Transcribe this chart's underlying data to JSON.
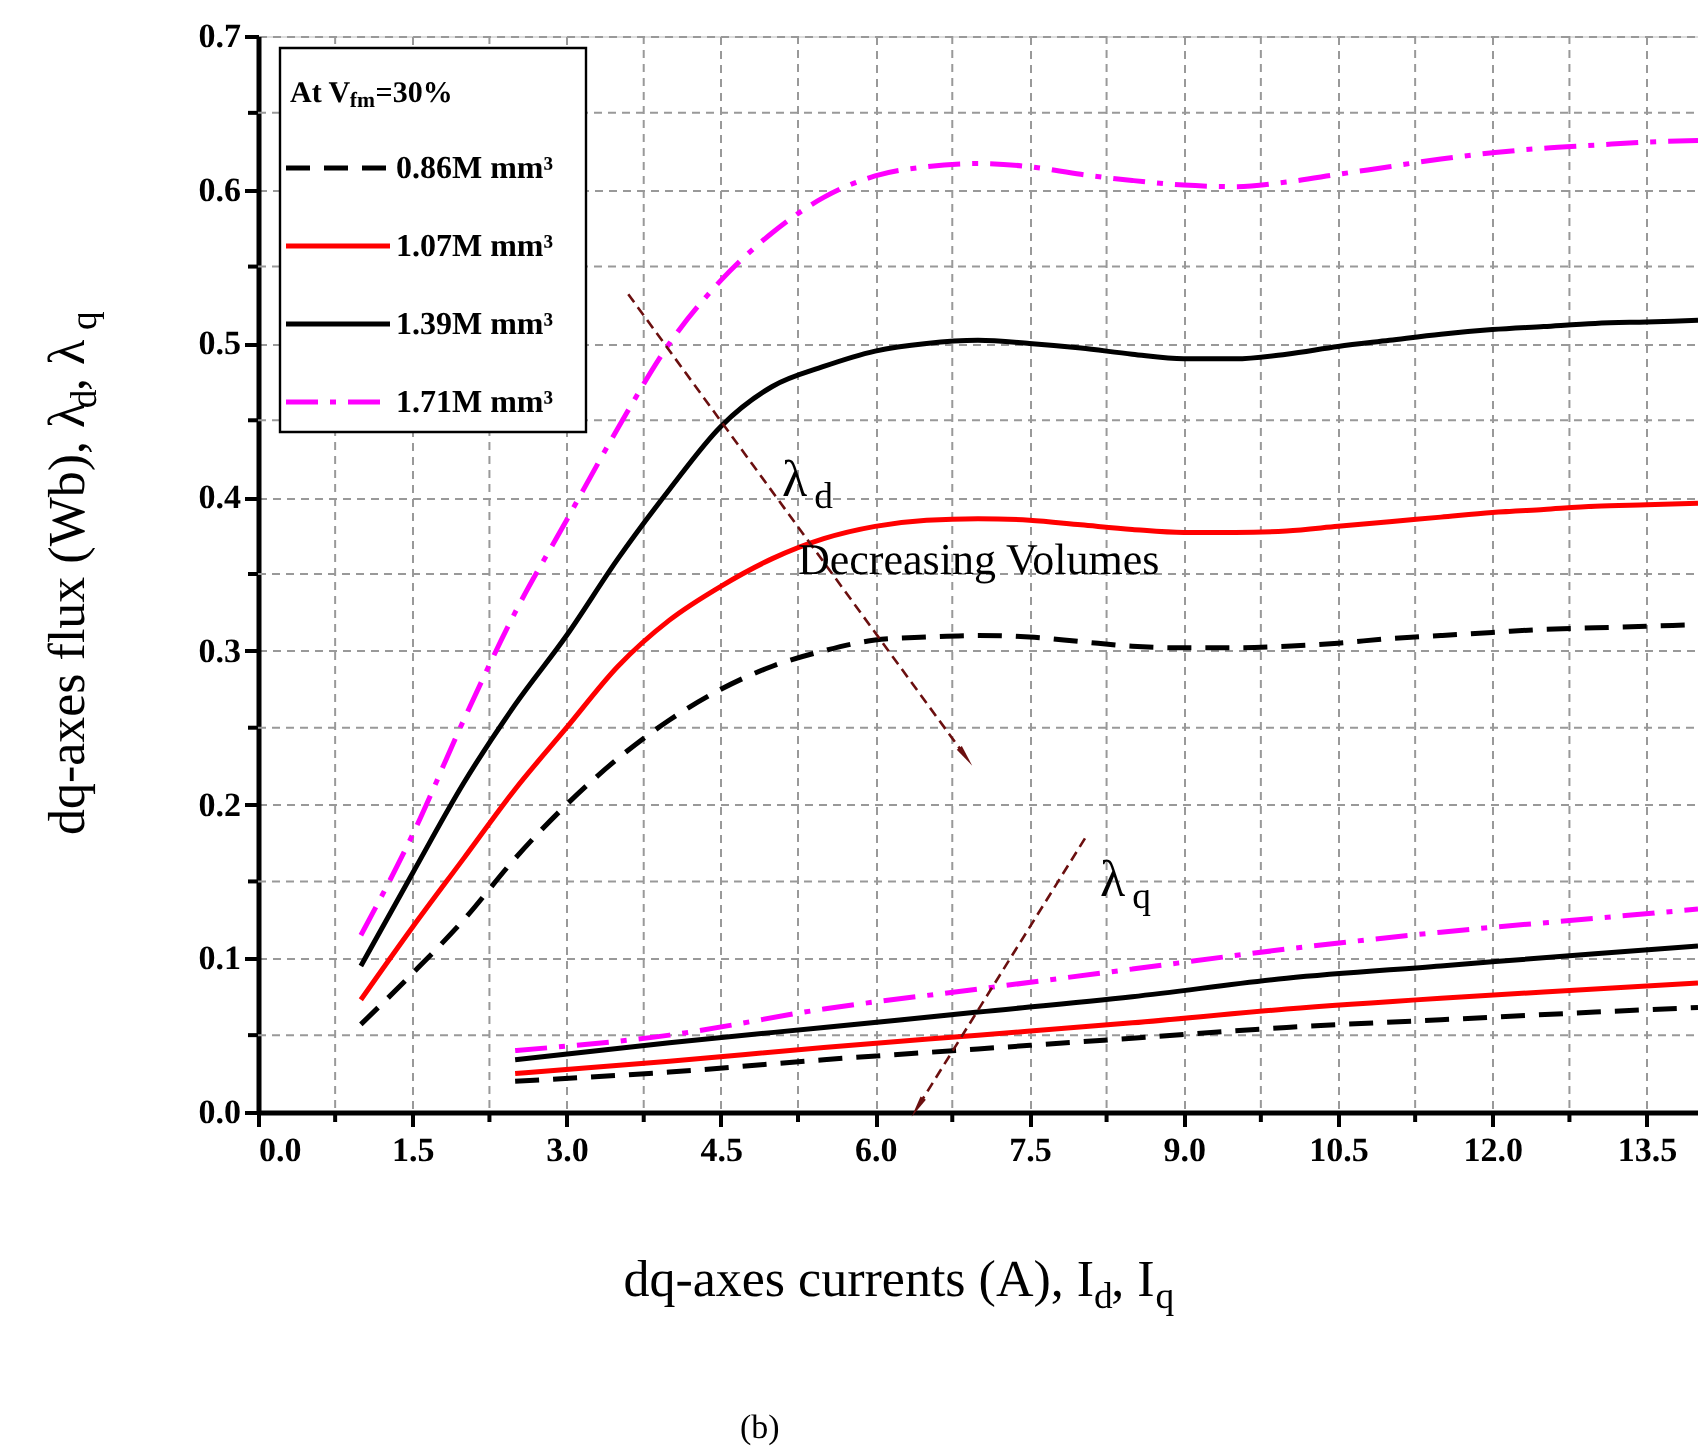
{
  "chart_data": {
    "type": "line",
    "xlabel": "dq-axes currents (A), I$_{d}$, I$_{q}$",
    "ylabel": "dq-axes flux (Wb), λ$_{d}$, λ$_{q}$",
    "legend_title": "At V$_{fm}$=30%",
    "legend": "top left",
    "grid": true,
    "marker": "none",
    "xlim": [
      0,
      14
    ],
    "ylim": [
      0,
      0.7
    ],
    "xticks": [
      {
        "value": 0,
        "label": "0.0"
      },
      {
        "value": 0.75,
        "label": null
      },
      1.5,
      {
        "value": 2.25,
        "label": null
      },
      {
        "value": 3,
        "label": "3.0"
      },
      {
        "value": 3.75,
        "label": null
      },
      4.5,
      {
        "value": 5.25,
        "label": null
      },
      {
        "value": 6,
        "label": "6.0"
      },
      {
        "value": 6.75,
        "label": null
      },
      7.5,
      {
        "value": 8.25,
        "label": null
      },
      {
        "value": 9,
        "label": "9.0"
      },
      {
        "value": 9.75,
        "label": null
      },
      10.5,
      {
        "value": 11.25,
        "label": null
      },
      {
        "value": 12,
        "label": "12.0"
      },
      {
        "value": 12.75,
        "label": null
      },
      13.5
    ],
    "yticks": [
      {
        "value": 0,
        "label": "0.0"
      },
      {
        "value": 0.05,
        "label": null
      },
      0.1,
      {
        "value": 0.15,
        "label": null
      },
      0.2,
      {
        "value": 0.25,
        "label": null
      },
      0.3,
      {
        "value": 0.35,
        "label": null
      },
      0.4,
      {
        "value": 0.45,
        "label": null
      },
      0.5,
      {
        "value": 0.55,
        "label": null
      },
      0.6,
      {
        "value": 0.65,
        "label": null
      },
      0.7
    ],
    "annotations": [
      "λ$_{d}$",
      "Decreasing Volumes",
      "λ$_{q}$",
      "(b)"
    ],
    "series": [
      {
        "name": "0.86M mm³",
        "color": "#000000",
        "line_style": "dashed",
        "x": [
          1.0,
          1.5,
          2.0,
          2.5,
          3.0,
          3.5,
          4.0,
          4.5,
          5.0,
          5.5,
          6.0,
          6.5,
          7.0,
          7.5,
          8.0,
          8.5,
          9.0,
          9.5,
          10.0,
          10.5,
          11.0,
          11.5,
          12.0,
          12.5,
          13.0,
          13.5,
          14.0
        ],
        "values": [
          0.057,
          0.09,
          0.125,
          0.165,
          0.2,
          0.23,
          0.255,
          0.275,
          0.29,
          0.3,
          0.307,
          0.309,
          0.31,
          0.309,
          0.306,
          0.303,
          0.302,
          0.302,
          0.303,
          0.305,
          0.308,
          0.31,
          0.312,
          0.314,
          0.315,
          0.316,
          0.317
        ]
      },
      {
        "name": "1.07M mm³",
        "color": "#ff0000",
        "line_style": "solid",
        "x": [
          1.0,
          1.5,
          2.0,
          2.5,
          3.0,
          3.5,
          4.0,
          4.5,
          5.0,
          5.5,
          6.0,
          6.5,
          7.0,
          7.5,
          8.0,
          8.5,
          9.0,
          9.5,
          10.0,
          10.5,
          11.0,
          11.5,
          12.0,
          12.5,
          13.0,
          13.5,
          14.0
        ],
        "values": [
          0.073,
          0.12,
          0.165,
          0.21,
          0.25,
          0.29,
          0.32,
          0.342,
          0.36,
          0.373,
          0.381,
          0.385,
          0.386,
          0.385,
          0.382,
          0.379,
          0.377,
          0.377,
          0.378,
          0.381,
          0.384,
          0.387,
          0.39,
          0.392,
          0.394,
          0.395,
          0.396
        ]
      },
      {
        "name": "1.39M mm³",
        "color": "#000000",
        "line_style": "solid",
        "x": [
          1.0,
          1.5,
          2.0,
          2.5,
          3.0,
          3.5,
          4.0,
          4.5,
          5.0,
          5.5,
          6.0,
          6.5,
          7.0,
          7.5,
          8.0,
          8.5,
          9.0,
          9.5,
          10.0,
          10.5,
          11.0,
          11.5,
          12.0,
          12.5,
          13.0,
          13.5,
          14.0
        ],
        "values": [
          0.095,
          0.155,
          0.214,
          0.265,
          0.31,
          0.36,
          0.405,
          0.446,
          0.472,
          0.485,
          0.495,
          0.5,
          0.502,
          0.5,
          0.497,
          0.493,
          0.49,
          0.49,
          0.493,
          0.498,
          0.502,
          0.506,
          0.509,
          0.511,
          0.513,
          0.514,
          0.515
        ]
      },
      {
        "name": "1.71M mm³",
        "color": "#ff00ff",
        "line_style": "dashdot",
        "x": [
          1.0,
          1.5,
          2.0,
          2.5,
          3.0,
          3.5,
          4.0,
          4.5,
          5.0,
          5.5,
          6.0,
          6.5,
          7.0,
          7.5,
          8.0,
          8.5,
          9.0,
          9.5,
          10.0,
          10.5,
          11.0,
          11.5,
          12.0,
          12.5,
          13.0,
          13.5,
          14.0
        ],
        "values": [
          0.115,
          0.18,
          0.255,
          0.325,
          0.385,
          0.445,
          0.5,
          0.541,
          0.572,
          0.595,
          0.609,
          0.615,
          0.617,
          0.615,
          0.61,
          0.606,
          0.603,
          0.602,
          0.605,
          0.61,
          0.615,
          0.62,
          0.624,
          0.627,
          0.629,
          0.631,
          0.632
        ]
      },
      {
        "color": "#000000",
        "line_style": "dashed",
        "x": [
          2.5,
          4.0,
          5.5,
          7.0,
          8.5,
          10.0,
          11.5,
          13.0,
          14.0
        ],
        "values": [
          0.02,
          0.026,
          0.034,
          0.041,
          0.048,
          0.055,
          0.06,
          0.065,
          0.068
        ]
      },
      {
        "color": "#ff0000",
        "line_style": "solid",
        "x": [
          2.5,
          4.0,
          5.5,
          7.0,
          8.5,
          10.0,
          11.5,
          13.0,
          14.0
        ],
        "values": [
          0.025,
          0.033,
          0.042,
          0.05,
          0.058,
          0.067,
          0.074,
          0.08,
          0.084
        ]
      },
      {
        "color": "#000000",
        "line_style": "solid",
        "x": [
          2.5,
          4.0,
          5.5,
          7.0,
          8.5,
          10.0,
          11.5,
          13.0,
          14.0
        ],
        "values": [
          0.034,
          0.045,
          0.055,
          0.065,
          0.075,
          0.087,
          0.095,
          0.103,
          0.108
        ]
      },
      {
        "color": "#ff00ff",
        "line_style": "dashdot",
        "x": [
          2.5,
          4.0,
          5.5,
          7.0,
          8.5,
          10.0,
          11.5,
          13.0,
          14.0
        ],
        "values": [
          0.04,
          0.05,
          0.067,
          0.08,
          0.093,
          0.106,
          0.117,
          0.126,
          0.132
        ]
      }
    ]
  }
}
